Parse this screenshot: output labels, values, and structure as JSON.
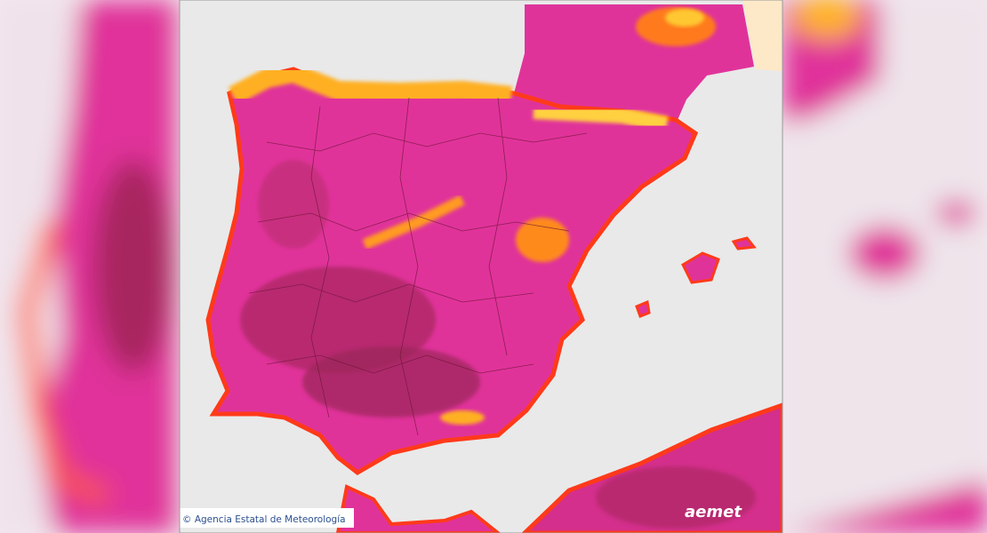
{
  "credit": "© Agencia Estatal de Meteorología",
  "logo": "aemet"
}
